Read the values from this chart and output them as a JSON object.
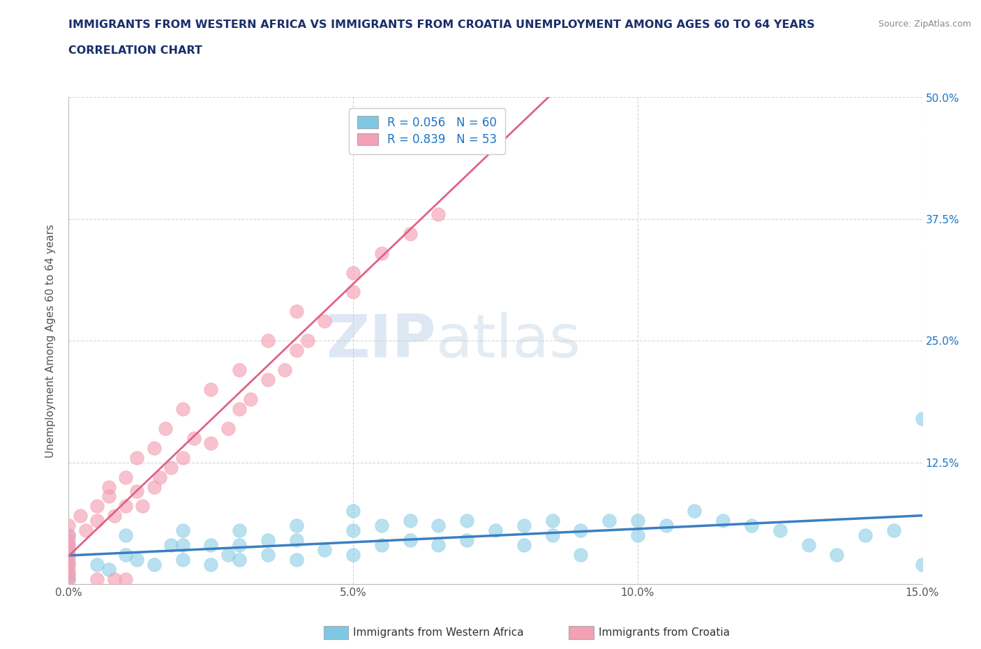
{
  "title_line1": "IMMIGRANTS FROM WESTERN AFRICA VS IMMIGRANTS FROM CROATIA UNEMPLOYMENT AMONG AGES 60 TO 64 YEARS",
  "title_line2": "CORRELATION CHART",
  "source": "Source: ZipAtlas.com",
  "ylabel": "Unemployment Among Ages 60 to 64 years",
  "xlim": [
    0.0,
    0.15
  ],
  "ylim": [
    0.0,
    0.5
  ],
  "xticks": [
    0.0,
    0.05,
    0.1,
    0.15
  ],
  "xticklabels": [
    "0.0%",
    "5.0%",
    "10.0%",
    "15.0%"
  ],
  "yticks_right": [
    0.0,
    0.125,
    0.25,
    0.375,
    0.5
  ],
  "yticklabels_right": [
    "",
    "12.5%",
    "25.0%",
    "37.5%",
    "50.0%"
  ],
  "watermark_zip": "ZIP",
  "watermark_atlas": "atlas",
  "legend_r1": "R = 0.056",
  "legend_n1": "N = 60",
  "legend_r2": "R = 0.839",
  "legend_n2": "N = 53",
  "label1": "Immigrants from Western Africa",
  "label2": "Immigrants from Croatia",
  "color1": "#7ec8e3",
  "color2": "#f4a0b5",
  "trend_color1": "#3a7fc1",
  "trend_color2": "#e0608a",
  "background_color": "#ffffff",
  "grid_color": "#cccccc",
  "title_color": "#1a2e6b",
  "r_color": "#1a75c4",
  "wa_x": [
    0.0,
    0.0,
    0.0,
    0.0,
    0.0,
    0.0,
    0.005,
    0.007,
    0.01,
    0.01,
    0.012,
    0.015,
    0.018,
    0.02,
    0.02,
    0.02,
    0.025,
    0.025,
    0.028,
    0.03,
    0.03,
    0.03,
    0.035,
    0.035,
    0.04,
    0.04,
    0.04,
    0.045,
    0.05,
    0.05,
    0.05,
    0.055,
    0.055,
    0.06,
    0.06,
    0.065,
    0.065,
    0.07,
    0.07,
    0.075,
    0.08,
    0.08,
    0.085,
    0.085,
    0.09,
    0.09,
    0.095,
    0.1,
    0.1,
    0.105,
    0.11,
    0.115,
    0.12,
    0.125,
    0.13,
    0.135,
    0.14,
    0.145,
    0.15,
    0.15
  ],
  "wa_y": [
    0.01,
    0.02,
    0.03,
    0.04,
    0.05,
    0.005,
    0.02,
    0.015,
    0.03,
    0.05,
    0.025,
    0.02,
    0.04,
    0.025,
    0.04,
    0.055,
    0.02,
    0.04,
    0.03,
    0.025,
    0.04,
    0.055,
    0.03,
    0.045,
    0.025,
    0.045,
    0.06,
    0.035,
    0.03,
    0.055,
    0.075,
    0.04,
    0.06,
    0.045,
    0.065,
    0.04,
    0.06,
    0.045,
    0.065,
    0.055,
    0.04,
    0.06,
    0.05,
    0.065,
    0.03,
    0.055,
    0.065,
    0.05,
    0.065,
    0.06,
    0.075,
    0.065,
    0.06,
    0.055,
    0.04,
    0.03,
    0.05,
    0.055,
    0.02,
    0.17
  ],
  "cr_x": [
    0.0,
    0.0,
    0.0,
    0.0,
    0.0,
    0.0,
    0.0,
    0.0,
    0.0,
    0.0,
    0.0,
    0.002,
    0.003,
    0.005,
    0.005,
    0.005,
    0.007,
    0.007,
    0.008,
    0.008,
    0.01,
    0.01,
    0.01,
    0.012,
    0.012,
    0.013,
    0.015,
    0.015,
    0.016,
    0.017,
    0.018,
    0.02,
    0.02,
    0.022,
    0.025,
    0.025,
    0.028,
    0.03,
    0.03,
    0.032,
    0.035,
    0.035,
    0.038,
    0.04,
    0.04,
    0.042,
    0.045,
    0.05,
    0.05,
    0.055,
    0.06,
    0.065,
    0.07
  ],
  "cr_y": [
    0.005,
    0.01,
    0.015,
    0.02,
    0.025,
    0.03,
    0.035,
    0.04,
    0.045,
    0.05,
    0.06,
    0.07,
    0.055,
    0.065,
    0.08,
    0.005,
    0.09,
    0.1,
    0.07,
    0.005,
    0.08,
    0.11,
    0.005,
    0.095,
    0.13,
    0.08,
    0.1,
    0.14,
    0.11,
    0.16,
    0.12,
    0.13,
    0.18,
    0.15,
    0.145,
    0.2,
    0.16,
    0.18,
    0.22,
    0.19,
    0.21,
    0.25,
    0.22,
    0.24,
    0.28,
    0.25,
    0.27,
    0.3,
    0.32,
    0.34,
    0.36,
    0.38,
    0.45
  ]
}
